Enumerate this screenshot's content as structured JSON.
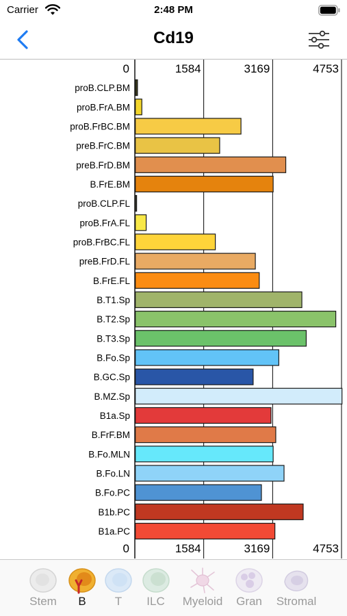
{
  "status_bar": {
    "carrier": "Carrier",
    "time": "2:48 PM"
  },
  "nav": {
    "title": "Cd19",
    "back_icon": "chevron-left-icon",
    "settings_icon": "sliders-icon",
    "accent": "#1e7bf2"
  },
  "chart_data": {
    "type": "bar",
    "orientation": "horizontal",
    "title": "Cd19",
    "xlim": [
      0,
      4753
    ],
    "ticks": [
      0,
      1584,
      3169,
      4753
    ],
    "tick_labels": [
      "0",
      "1584",
      "3169",
      "4753"
    ],
    "grid": true,
    "categories": [
      "proB.CLP.BM",
      "proB.FrA.BM",
      "proB.FrBC.BM",
      "preB.FrC.BM",
      "preB.FrD.BM",
      "B.FrE.BM",
      "proB.CLP.FL",
      "proB.FrA.FL",
      "proB.FrBC.FL",
      "preB.FrD.FL",
      "B.FrE.FL",
      "B.T1.Sp",
      "B.T2.Sp",
      "B.T3.Sp",
      "B.Fo.Sp",
      "B.GC.Sp",
      "B.MZ.Sp",
      "B1a.Sp",
      "B.FrF.BM",
      "B.Fo.MLN",
      "B.Fo.LN",
      "B.Fo.PC",
      "B1b.PC",
      "B1a.PC"
    ],
    "values": [
      50,
      150,
      2430,
      1940,
      3460,
      3170,
      30,
      250,
      1840,
      2760,
      2850,
      3830,
      4610,
      3930,
      3300,
      2710,
      4753,
      3120,
      3230,
      3170,
      3420,
      2900,
      3860,
      3210
    ],
    "colors": [
      "#3b3a1c",
      "#f2d52b",
      "#f7cb45",
      "#e9c345",
      "#e18f4e",
      "#e5830d",
      "#4a4a3a",
      "#f8e847",
      "#fed43a",
      "#e9aa63",
      "#fb8c12",
      "#a0b46a",
      "#8ac36a",
      "#6bc26a",
      "#62c3f7",
      "#2956a7",
      "#d2ecfb",
      "#e33a3a",
      "#e07a48",
      "#66e8fb",
      "#8fd3f8",
      "#4f93d3",
      "#c03821",
      "#f24a35"
    ]
  },
  "tabs": [
    {
      "label": "Stem",
      "icon": "stem-cell-icon",
      "active": false
    },
    {
      "label": "B",
      "icon": "b-cell-icon",
      "active": true
    },
    {
      "label": "T",
      "icon": "t-cell-icon",
      "active": false
    },
    {
      "label": "ILC",
      "icon": "ilc-cell-icon",
      "active": false
    },
    {
      "label": "Myeloid",
      "icon": "myeloid-cell-icon",
      "active": false
    },
    {
      "label": "Gran",
      "icon": "granulocyte-icon",
      "active": false
    },
    {
      "label": "Stromal",
      "icon": "stromal-cell-icon",
      "active": false
    }
  ]
}
